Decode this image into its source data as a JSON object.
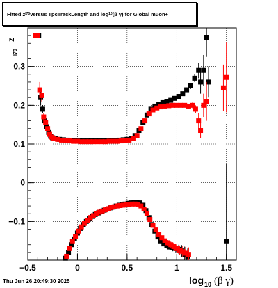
{
  "title": {
    "part1": "Fitted  z",
    "sub1": "I70",
    "part2": "  versus TpcTrackLength and log",
    "sub2": "10",
    "part3": " (β  γ) for Global muon+"
  },
  "datestamp": "Thu Jun 26 20:49:30 2025",
  "colors": {
    "series_black": "#000000",
    "series_red": "#ff0000",
    "grid": "#000000"
  },
  "chart_data": {
    "type": "scatter",
    "title": "Fitted  zI70  versus TpcTrackLength and log10 (β  γ) for Global muon+",
    "xlabel": "log10(β γ)",
    "ylabel": "zI70",
    "xlim": [
      -0.5,
      1.6
    ],
    "ylim": [
      -0.2,
      0.4
    ],
    "x_ticks": [
      -0.5,
      0,
      0.5,
      1,
      1.5
    ],
    "x_tick_labels": [
      "−0.5",
      "0",
      "0.5",
      "1",
      "1.5"
    ],
    "y_ticks": [
      -0.1,
      0,
      0.1,
      0.2,
      0.3
    ],
    "y_tick_labels": [
      "−0.1",
      "0",
      "0.1",
      "0.2",
      "0.3"
    ],
    "grid": true,
    "series": [
      {
        "marker": "square",
        "color": "#000000",
        "points": [
          [
            -0.41,
            0.38,
            0.0
          ],
          [
            -0.39,
            0.38,
            0.0
          ],
          [
            -0.37,
            0.22,
            0.02
          ],
          [
            -0.35,
            0.19,
            0.01
          ],
          [
            -0.33,
            0.16,
            0.01
          ],
          [
            -0.31,
            0.145,
            0.005
          ],
          [
            -0.29,
            0.13,
            0.004
          ],
          [
            -0.27,
            0.12,
            0.003
          ],
          [
            -0.25,
            0.116,
            0.003
          ],
          [
            -0.22,
            0.114,
            0.002
          ],
          [
            -0.18,
            0.112,
            0.002
          ],
          [
            -0.14,
            0.111,
            0.002
          ],
          [
            -0.1,
            0.11,
            0.002
          ],
          [
            -0.06,
            0.109,
            0.002
          ],
          [
            -0.02,
            0.109,
            0.002
          ],
          [
            0.02,
            0.108,
            0.002
          ],
          [
            0.06,
            0.108,
            0.002
          ],
          [
            0.1,
            0.108,
            0.002
          ],
          [
            0.14,
            0.108,
            0.002
          ],
          [
            0.18,
            0.108,
            0.002
          ],
          [
            0.22,
            0.108,
            0.002
          ],
          [
            0.26,
            0.108,
            0.002
          ],
          [
            0.3,
            0.108,
            0.002
          ],
          [
            0.34,
            0.109,
            0.002
          ],
          [
            0.38,
            0.109,
            0.002
          ],
          [
            0.42,
            0.11,
            0.002
          ],
          [
            0.46,
            0.111,
            0.002
          ],
          [
            0.5,
            0.112,
            0.002
          ],
          [
            0.54,
            0.115,
            0.002
          ],
          [
            0.58,
            0.122,
            0.003
          ],
          [
            0.62,
            0.135,
            0.003
          ],
          [
            0.66,
            0.155,
            0.003
          ],
          [
            0.7,
            0.175,
            0.003
          ],
          [
            0.74,
            0.19,
            0.003
          ],
          [
            0.78,
            0.198,
            0.003
          ],
          [
            0.82,
            0.203,
            0.003
          ],
          [
            0.86,
            0.207,
            0.003
          ],
          [
            0.9,
            0.21,
            0.003
          ],
          [
            0.94,
            0.213,
            0.003
          ],
          [
            0.98,
            0.218,
            0.004
          ],
          [
            1.02,
            0.223,
            0.004
          ],
          [
            1.06,
            0.23,
            0.005
          ],
          [
            1.1,
            0.24,
            0.006
          ],
          [
            1.14,
            0.25,
            0.008
          ],
          [
            1.18,
            0.27,
            0.01
          ],
          [
            1.22,
            0.29,
            0.02
          ],
          [
            1.24,
            0.26,
            0.03
          ],
          [
            1.27,
            0.29,
            0.04
          ],
          [
            1.3,
            0.375,
            0.05
          ],
          [
            1.32,
            0.26,
            0.04
          ],
          [
            -0.12,
            -0.195,
            0.004
          ],
          [
            -0.09,
            -0.18,
            0.004
          ],
          [
            -0.06,
            -0.16,
            0.003
          ],
          [
            -0.03,
            -0.145,
            0.003
          ],
          [
            0.0,
            -0.13,
            0.003
          ],
          [
            0.03,
            -0.118,
            0.003
          ],
          [
            0.06,
            -0.108,
            0.003
          ],
          [
            0.09,
            -0.1,
            0.003
          ],
          [
            0.12,
            -0.093,
            0.003
          ],
          [
            0.15,
            -0.087,
            0.003
          ],
          [
            0.18,
            -0.082,
            0.003
          ],
          [
            0.21,
            -0.078,
            0.003
          ],
          [
            0.24,
            -0.074,
            0.003
          ],
          [
            0.27,
            -0.071,
            0.003
          ],
          [
            0.3,
            -0.068,
            0.003
          ],
          [
            0.33,
            -0.065,
            0.003
          ],
          [
            0.36,
            -0.063,
            0.003
          ],
          [
            0.39,
            -0.06,
            0.003
          ],
          [
            0.42,
            -0.058,
            0.003
          ],
          [
            0.45,
            -0.057,
            0.003
          ],
          [
            0.48,
            -0.055,
            0.003
          ],
          [
            0.51,
            -0.053,
            0.003
          ],
          [
            0.54,
            -0.052,
            0.003
          ],
          [
            0.57,
            -0.05,
            0.003
          ],
          [
            0.6,
            -0.05,
            0.003
          ],
          [
            0.63,
            -0.052,
            0.003
          ],
          [
            0.66,
            -0.058,
            0.003
          ],
          [
            0.69,
            -0.072,
            0.004
          ],
          [
            0.72,
            -0.09,
            0.004
          ],
          [
            0.75,
            -0.108,
            0.004
          ],
          [
            0.78,
            -0.125,
            0.005
          ],
          [
            0.81,
            -0.14,
            0.005
          ],
          [
            0.84,
            -0.152,
            0.006
          ],
          [
            0.87,
            -0.158,
            0.006
          ],
          [
            0.9,
            -0.163,
            0.007
          ],
          [
            0.93,
            -0.166,
            0.008
          ],
          [
            0.96,
            -0.168,
            0.009
          ],
          [
            0.99,
            -0.17,
            0.01
          ],
          [
            1.02,
            -0.172,
            0.012
          ],
          [
            1.05,
            -0.176,
            0.015
          ],
          [
            1.08,
            -0.185,
            0.02
          ],
          [
            1.11,
            -0.19,
            0.02
          ],
          [
            1.5,
            -0.152,
            0.2
          ]
        ]
      },
      {
        "marker": "square",
        "color": "#ff0000",
        "points": [
          [
            -0.42,
            0.38,
            0.0
          ],
          [
            -0.4,
            0.38,
            0.0
          ],
          [
            -0.38,
            0.24,
            0.02
          ],
          [
            -0.36,
            0.225,
            0.015
          ],
          [
            -0.34,
            0.17,
            0.01
          ],
          [
            -0.32,
            0.155,
            0.006
          ],
          [
            -0.3,
            0.14,
            0.005
          ],
          [
            -0.28,
            0.125,
            0.004
          ],
          [
            -0.26,
            0.118,
            0.003
          ],
          [
            -0.24,
            0.115,
            0.003
          ],
          [
            -0.2,
            0.112,
            0.002
          ],
          [
            -0.16,
            0.11,
            0.002
          ],
          [
            -0.12,
            0.109,
            0.002
          ],
          [
            -0.08,
            0.108,
            0.002
          ],
          [
            -0.04,
            0.107,
            0.002
          ],
          [
            0.0,
            0.107,
            0.002
          ],
          [
            0.04,
            0.106,
            0.002
          ],
          [
            0.08,
            0.106,
            0.002
          ],
          [
            0.12,
            0.106,
            0.002
          ],
          [
            0.16,
            0.106,
            0.002
          ],
          [
            0.2,
            0.106,
            0.002
          ],
          [
            0.24,
            0.106,
            0.002
          ],
          [
            0.28,
            0.106,
            0.002
          ],
          [
            0.32,
            0.107,
            0.002
          ],
          [
            0.36,
            0.107,
            0.002
          ],
          [
            0.4,
            0.107,
            0.002
          ],
          [
            0.44,
            0.108,
            0.002
          ],
          [
            0.48,
            0.109,
            0.002
          ],
          [
            0.52,
            0.11,
            0.002
          ],
          [
            0.56,
            0.114,
            0.003
          ],
          [
            0.6,
            0.122,
            0.003
          ],
          [
            0.64,
            0.14,
            0.003
          ],
          [
            0.68,
            0.16,
            0.003
          ],
          [
            0.72,
            0.178,
            0.003
          ],
          [
            0.76,
            0.188,
            0.003
          ],
          [
            0.8,
            0.193,
            0.003
          ],
          [
            0.84,
            0.196,
            0.003
          ],
          [
            0.88,
            0.198,
            0.003
          ],
          [
            0.92,
            0.199,
            0.003
          ],
          [
            0.96,
            0.2,
            0.004
          ],
          [
            1.0,
            0.2,
            0.004
          ],
          [
            1.04,
            0.2,
            0.005
          ],
          [
            1.08,
            0.2,
            0.005
          ],
          [
            1.12,
            0.198,
            0.006
          ],
          [
            1.16,
            0.2,
            0.008
          ],
          [
            1.19,
            0.19,
            0.01
          ],
          [
            1.22,
            0.16,
            0.02
          ],
          [
            1.24,
            0.135,
            0.02
          ],
          [
            1.27,
            0.2,
            0.03
          ],
          [
            1.3,
            0.21,
            0.05
          ],
          [
            1.47,
            0.245,
            0.06
          ],
          [
            1.5,
            0.272,
            0.09
          ],
          [
            -0.11,
            -0.19,
            0.004
          ],
          [
            -0.08,
            -0.17,
            0.004
          ],
          [
            -0.05,
            -0.152,
            0.003
          ],
          [
            -0.02,
            -0.138,
            0.003
          ],
          [
            0.01,
            -0.125,
            0.003
          ],
          [
            0.04,
            -0.114,
            0.003
          ],
          [
            0.07,
            -0.105,
            0.003
          ],
          [
            0.1,
            -0.097,
            0.003
          ],
          [
            0.13,
            -0.09,
            0.003
          ],
          [
            0.16,
            -0.085,
            0.003
          ],
          [
            0.19,
            -0.08,
            0.003
          ],
          [
            0.22,
            -0.076,
            0.003
          ],
          [
            0.25,
            -0.073,
            0.003
          ],
          [
            0.28,
            -0.07,
            0.003
          ],
          [
            0.31,
            -0.067,
            0.003
          ],
          [
            0.34,
            -0.064,
            0.003
          ],
          [
            0.37,
            -0.062,
            0.003
          ],
          [
            0.4,
            -0.06,
            0.003
          ],
          [
            0.43,
            -0.059,
            0.003
          ],
          [
            0.46,
            -0.058,
            0.003
          ],
          [
            0.49,
            -0.057,
            0.003
          ],
          [
            0.52,
            -0.056,
            0.003
          ],
          [
            0.55,
            -0.055,
            0.003
          ],
          [
            0.58,
            -0.055,
            0.003
          ],
          [
            0.61,
            -0.056,
            0.003
          ],
          [
            0.64,
            -0.06,
            0.003
          ],
          [
            0.67,
            -0.068,
            0.004
          ],
          [
            0.7,
            -0.08,
            0.004
          ],
          [
            0.73,
            -0.095,
            0.004
          ],
          [
            0.76,
            -0.11,
            0.004
          ],
          [
            0.79,
            -0.122,
            0.005
          ],
          [
            0.82,
            -0.133,
            0.005
          ],
          [
            0.85,
            -0.142,
            0.006
          ],
          [
            0.88,
            -0.15,
            0.006
          ],
          [
            0.91,
            -0.155,
            0.007
          ],
          [
            0.94,
            -0.16,
            0.008
          ],
          [
            0.97,
            -0.165,
            0.009
          ],
          [
            1.0,
            -0.17,
            0.01
          ],
          [
            1.03,
            -0.174,
            0.012
          ],
          [
            1.06,
            -0.178,
            0.014
          ],
          [
            1.09,
            -0.182,
            0.016
          ],
          [
            1.12,
            -0.185,
            0.018
          ]
        ]
      }
    ]
  }
}
